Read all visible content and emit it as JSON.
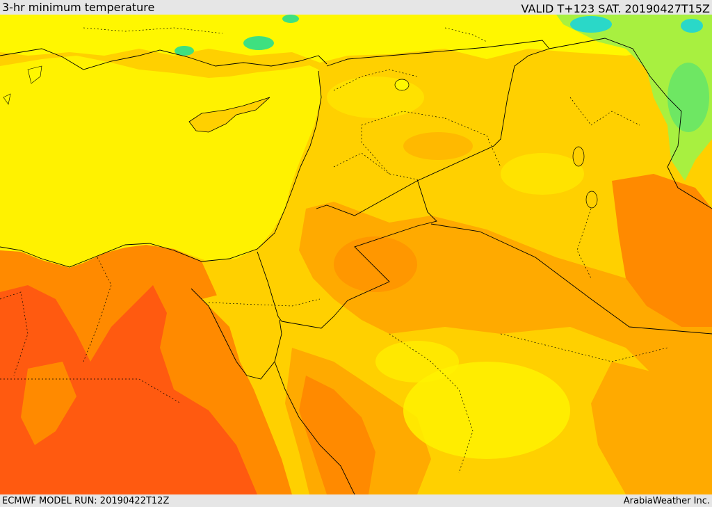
{
  "header": {
    "title": "3-hr minimum temperature",
    "valid": "VALID T+123 SAT. 20190427T15Z"
  },
  "footer": {
    "model_run": "ECMWF MODEL RUN: 20190422T12Z",
    "credit": "ArabiaWeather Inc."
  },
  "map": {
    "colors": {
      "sea": "#fff200",
      "pale_yellow": "#fff700",
      "light_orange": "#ffd000",
      "orange": "#ffaa00",
      "dark_orange": "#ff8a00",
      "red_orange": "#ff5a10",
      "light_green": "#a8f040",
      "green": "#3ee080",
      "cyan": "#2ad8c8"
    }
  }
}
